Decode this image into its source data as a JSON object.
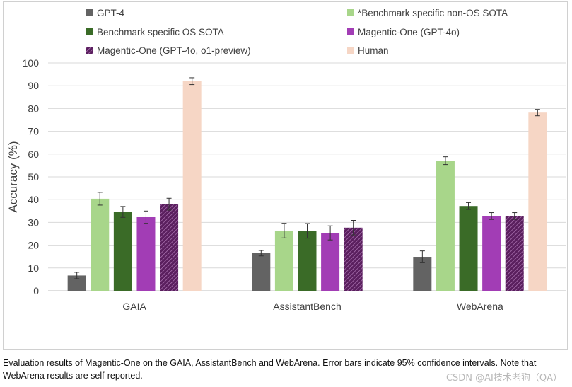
{
  "caption": "Evaluation results of Magentic-One on the GAIA, AssistantBench and WebArena. Error bars indicate 95% confidence intervals. Note that WebArena results are self-reported.",
  "watermark": "CSDN @AI技术老狗（QA）",
  "chart_data": {
    "type": "bar",
    "title": "",
    "xlabel": "",
    "ylabel": "Accuracy (%)",
    "ylim": [
      0,
      100
    ],
    "yticks": [
      0,
      10,
      20,
      30,
      40,
      50,
      60,
      70,
      80,
      90,
      100
    ],
    "grid": true,
    "legend_position": "top",
    "error_bars": "95% confidence intervals",
    "categories": [
      "GAIA",
      "AssistantBench",
      "WebArena"
    ],
    "series": [
      {
        "name": "GPT-4",
        "color": "#636363",
        "pattern": "solid",
        "values": [
          6.7,
          16.5,
          14.9
        ],
        "errors": [
          1.4,
          1.2,
          2.6
        ]
      },
      {
        "name": "*Benchmark specific non-OS SOTA",
        "color": "#a8d68a",
        "pattern": "solid",
        "values": [
          40.4,
          26.4,
          57.1
        ],
        "errors": [
          2.8,
          3.2,
          1.7
        ]
      },
      {
        "name": "Benchmark specific OS SOTA",
        "color": "#3a6b27",
        "pattern": "solid",
        "values": [
          34.6,
          26.3,
          37.2
        ],
        "errors": [
          2.4,
          3.2,
          1.5
        ]
      },
      {
        "name": "Magentic-One (GPT-4o)",
        "color": "#a23db5",
        "pattern": "solid",
        "values": [
          32.3,
          25.4,
          32.8
        ],
        "errors": [
          2.7,
          3.1,
          1.5
        ]
      },
      {
        "name": "Magentic-One (GPT-4o, o1-preview)",
        "color": "#5a1f5e",
        "pattern": "hatched",
        "values": [
          38.0,
          27.7,
          32.8
        ],
        "errors": [
          2.6,
          3.2,
          1.5
        ]
      },
      {
        "name": "Human",
        "color": "#f6d6c5",
        "pattern": "solid",
        "values": [
          92.0,
          null,
          78.2
        ],
        "errors": [
          1.5,
          null,
          1.4
        ]
      }
    ]
  }
}
